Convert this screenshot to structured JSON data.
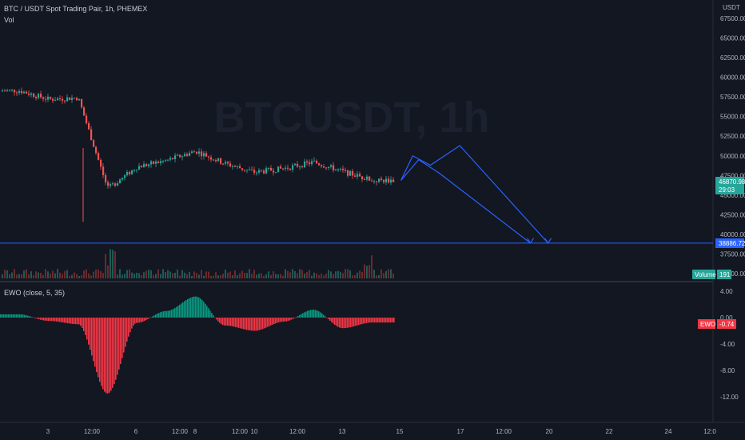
{
  "header": {
    "symbol_line": "BTC / USDT Spot Trading Pair, 1h, PHEMEX",
    "volume_label": "Vol",
    "watermark": "BTCUSDT, 1h"
  },
  "price_axis": {
    "currency": "USDT",
    "ticks": [
      "67500.00",
      "65000.00",
      "62500.00",
      "60000.00",
      "57500.00",
      "55000.00",
      "52500.00",
      "50000.00",
      "47500.00",
      "45000.00",
      "42500.00",
      "40000.00",
      "37500.00",
      "35000.00"
    ],
    "current_price": "46870.98",
    "countdown": "29:03",
    "level_price": "38886.72"
  },
  "volume_badge": {
    "label": "Volume",
    "value": "191"
  },
  "ewo": {
    "title": "EWO (close, 5, 35)",
    "ticks": [
      "4.00",
      "0.00",
      "-4.00",
      "-8.00",
      "-12.00"
    ],
    "badge_label": "EWO",
    "badge_value": "-0.74"
  },
  "time_axis": {
    "labels": [
      "3",
      "12:00",
      "6",
      "12:00",
      "8",
      "12:00",
      "10",
      "12:00",
      "13",
      "15",
      "17",
      "12:00",
      "20",
      "22",
      "24",
      "12:0"
    ]
  },
  "colors": {
    "background": "#131722",
    "up": "#26a69a",
    "down": "#ef5350",
    "drawing": "#2962ff",
    "ewo_up": "#089981",
    "ewo_down": "#f23645",
    "price_badge": "#26a69a",
    "level_badge": "#2962ff",
    "ewo_badge": "#f23645"
  },
  "chart_data": [
    {
      "type": "candlestick",
      "title": "BTC / USDT Spot Trading Pair, 1h, PHEMEX",
      "ylim": [
        35000,
        67500
      ],
      "series": [
        {
          "name": "",
          "x": [
            "2",
            "3",
            "4",
            "5",
            "6",
            "7",
            "8",
            "9",
            "10",
            "11",
            "12",
            "13",
            "14"
          ],
          "values": [
            58300,
            57200,
            57400,
            45800,
            48600,
            49400,
            50600,
            49000,
            47900,
            48400,
            49200,
            48000,
            46870.98
          ]
        }
      ],
      "horizontal_line": 38886.72,
      "projection_path_1": [
        [
          15,
          46870
        ],
        [
          15.6,
          49500
        ],
        [
          16.3,
          47800
        ],
        [
          19.4,
          38886.72
        ]
      ],
      "projection_path_2": [
        [
          15,
          46870
        ],
        [
          15.4,
          50000
        ],
        [
          16.0,
          48800
        ],
        [
          17.0,
          51300
        ],
        [
          20.0,
          38886.72
        ]
      ]
    },
    {
      "type": "bar",
      "title": "EWO (close, 5, 35)",
      "ylim": [
        -13.5,
        4.5
      ],
      "x": [
        "2",
        "3",
        "4",
        "5",
        "6",
        "7",
        "8",
        "9",
        "10",
        "11",
        "12",
        "13",
        "14"
      ],
      "values": [
        0.5,
        -0.5,
        -1.0,
        -11.5,
        -0.8,
        1.0,
        3.2,
        -1.2,
        -2.0,
        -0.6,
        1.2,
        -1.6,
        -0.74
      ]
    }
  ]
}
